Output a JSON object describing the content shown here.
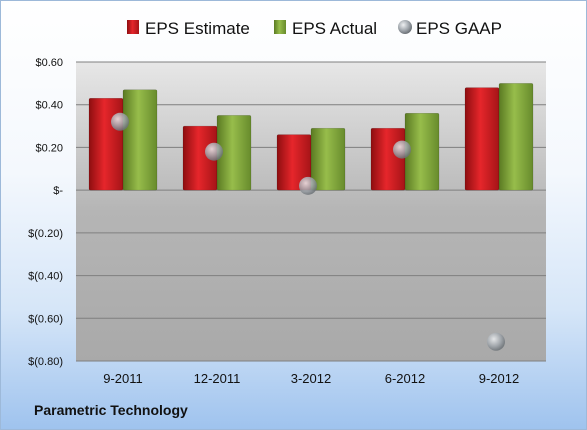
{
  "chart_data": {
    "type": "bar",
    "categories": [
      "9-2011",
      "12-2011",
      "3-2012",
      "6-2012",
      "9-2012"
    ],
    "series": [
      {
        "name": "EPS Estimate",
        "kind": "bar",
        "color": "#d42026",
        "values": [
          0.43,
          0.3,
          0.26,
          0.29,
          0.48
        ]
      },
      {
        "name": "EPS Actual",
        "kind": "bar",
        "color": "#86ac3c",
        "values": [
          0.47,
          0.35,
          0.29,
          0.36,
          0.5
        ]
      },
      {
        "name": "EPS GAAP",
        "kind": "marker",
        "color": "#9aa3ab",
        "values": [
          0.32,
          0.18,
          0.02,
          0.19,
          -0.71
        ]
      }
    ],
    "yticks": [
      0.6,
      0.4,
      0.2,
      0,
      -0.2,
      -0.4,
      -0.6,
      -0.8
    ],
    "ytick_labels": [
      "$0.60",
      "$0.40",
      "$0.20",
      "$-",
      "$(0.20)",
      "$(0.40)",
      "$(0.60)",
      "$(0.80)"
    ],
    "ylim": [
      -0.8,
      0.6
    ],
    "grid": true,
    "legend_position": "top"
  },
  "footer": {
    "company": "Parametric Technology"
  }
}
